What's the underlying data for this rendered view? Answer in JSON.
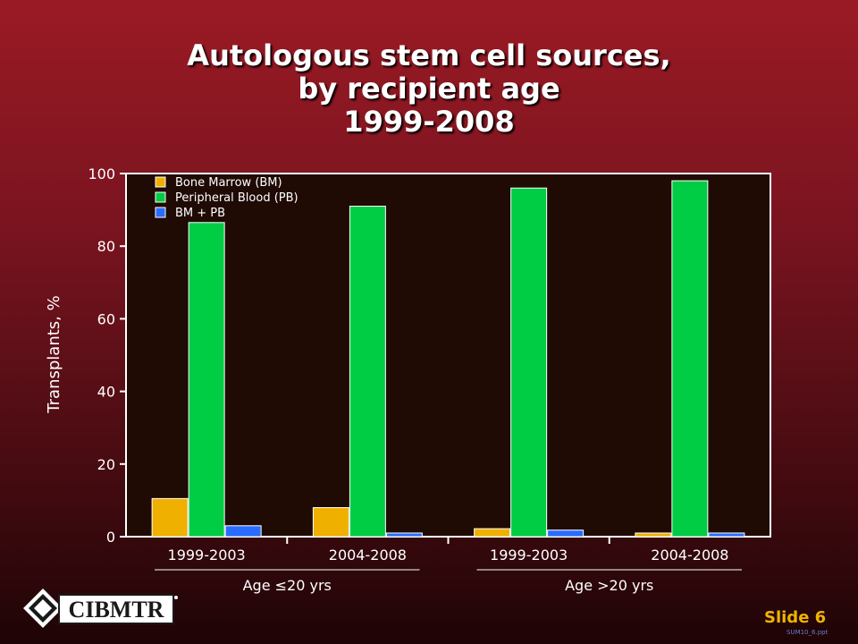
{
  "title": {
    "line1": "Autologous stem cell sources,",
    "line2": "by recipient age",
    "line3": "1999-2008"
  },
  "chart_data": {
    "type": "bar",
    "categories": [
      "1999-2003",
      "2004-2008",
      "1999-2003",
      "2004-2008"
    ],
    "groups": [
      {
        "label": "Age ≤20 yrs",
        "categories": [
          0,
          1
        ]
      },
      {
        "label": "Age >20 yrs",
        "categories": [
          2,
          3
        ]
      }
    ],
    "series": [
      {
        "name": "Bone Marrow (BM)",
        "color": "#f0b000",
        "values": [
          10.5,
          8,
          2.2,
          1
        ]
      },
      {
        "name": "Peripheral Blood (PB)",
        "color": "#00cc44",
        "values": [
          86.5,
          91,
          96,
          98
        ]
      },
      {
        "name": "BM + PB",
        "color": "#2a6cff",
        "values": [
          3,
          1,
          1.8,
          1
        ]
      }
    ],
    "ylabel": "Transplants, %",
    "ylim": [
      0,
      100
    ],
    "yticks": [
      0,
      20,
      40,
      60,
      80,
      100
    ],
    "legend": "top-left",
    "grid": false
  },
  "footer": {
    "logo_text": "CIBMTR",
    "slide_label": "Slide 6",
    "slide_id": "SUM10_6.ppt"
  }
}
